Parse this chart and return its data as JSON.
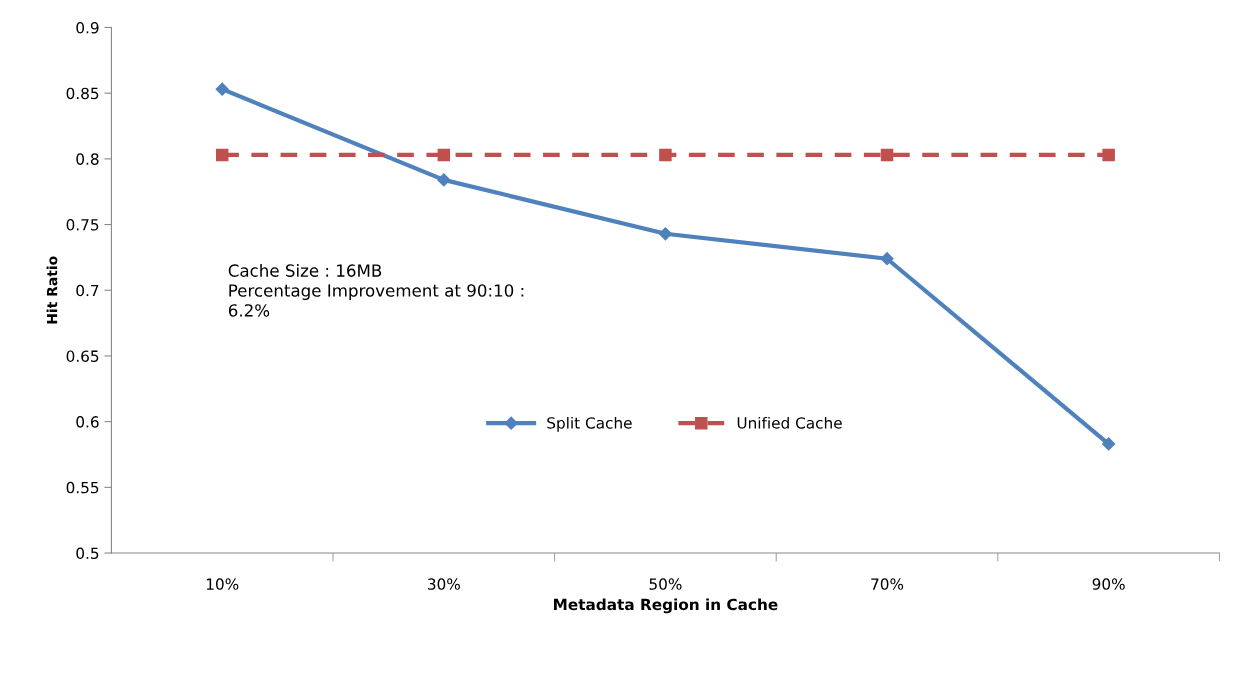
{
  "chart_data": {
    "type": "line",
    "xlabel": "Metadata Region in Cache",
    "ylabel": "Hit Ratio",
    "categories": [
      "10%",
      "30%",
      "50%",
      "70%",
      "90%"
    ],
    "series": [
      {
        "name": "Split Cache",
        "color": "#4f81bd",
        "values": [
          0.853,
          0.784,
          0.743,
          0.724,
          0.583
        ],
        "marker": "diamond",
        "line_style": "solid"
      },
      {
        "name": "Unified Cache",
        "color": "#c0504d",
        "values": [
          0.803,
          0.803,
          0.803,
          0.803,
          0.803
        ],
        "marker": "square",
        "line_style": "dashed"
      }
    ],
    "ylim": [
      0.5,
      0.9
    ],
    "yticks": [
      0.5,
      0.55,
      0.6,
      0.65,
      0.7,
      0.75,
      0.8,
      0.85,
      0.9
    ],
    "annotations": [
      "Cache Size : 16MB\nPercentage Improvement at 90:10 :\n6.2%"
    ],
    "legend": "center",
    "grid": false
  }
}
